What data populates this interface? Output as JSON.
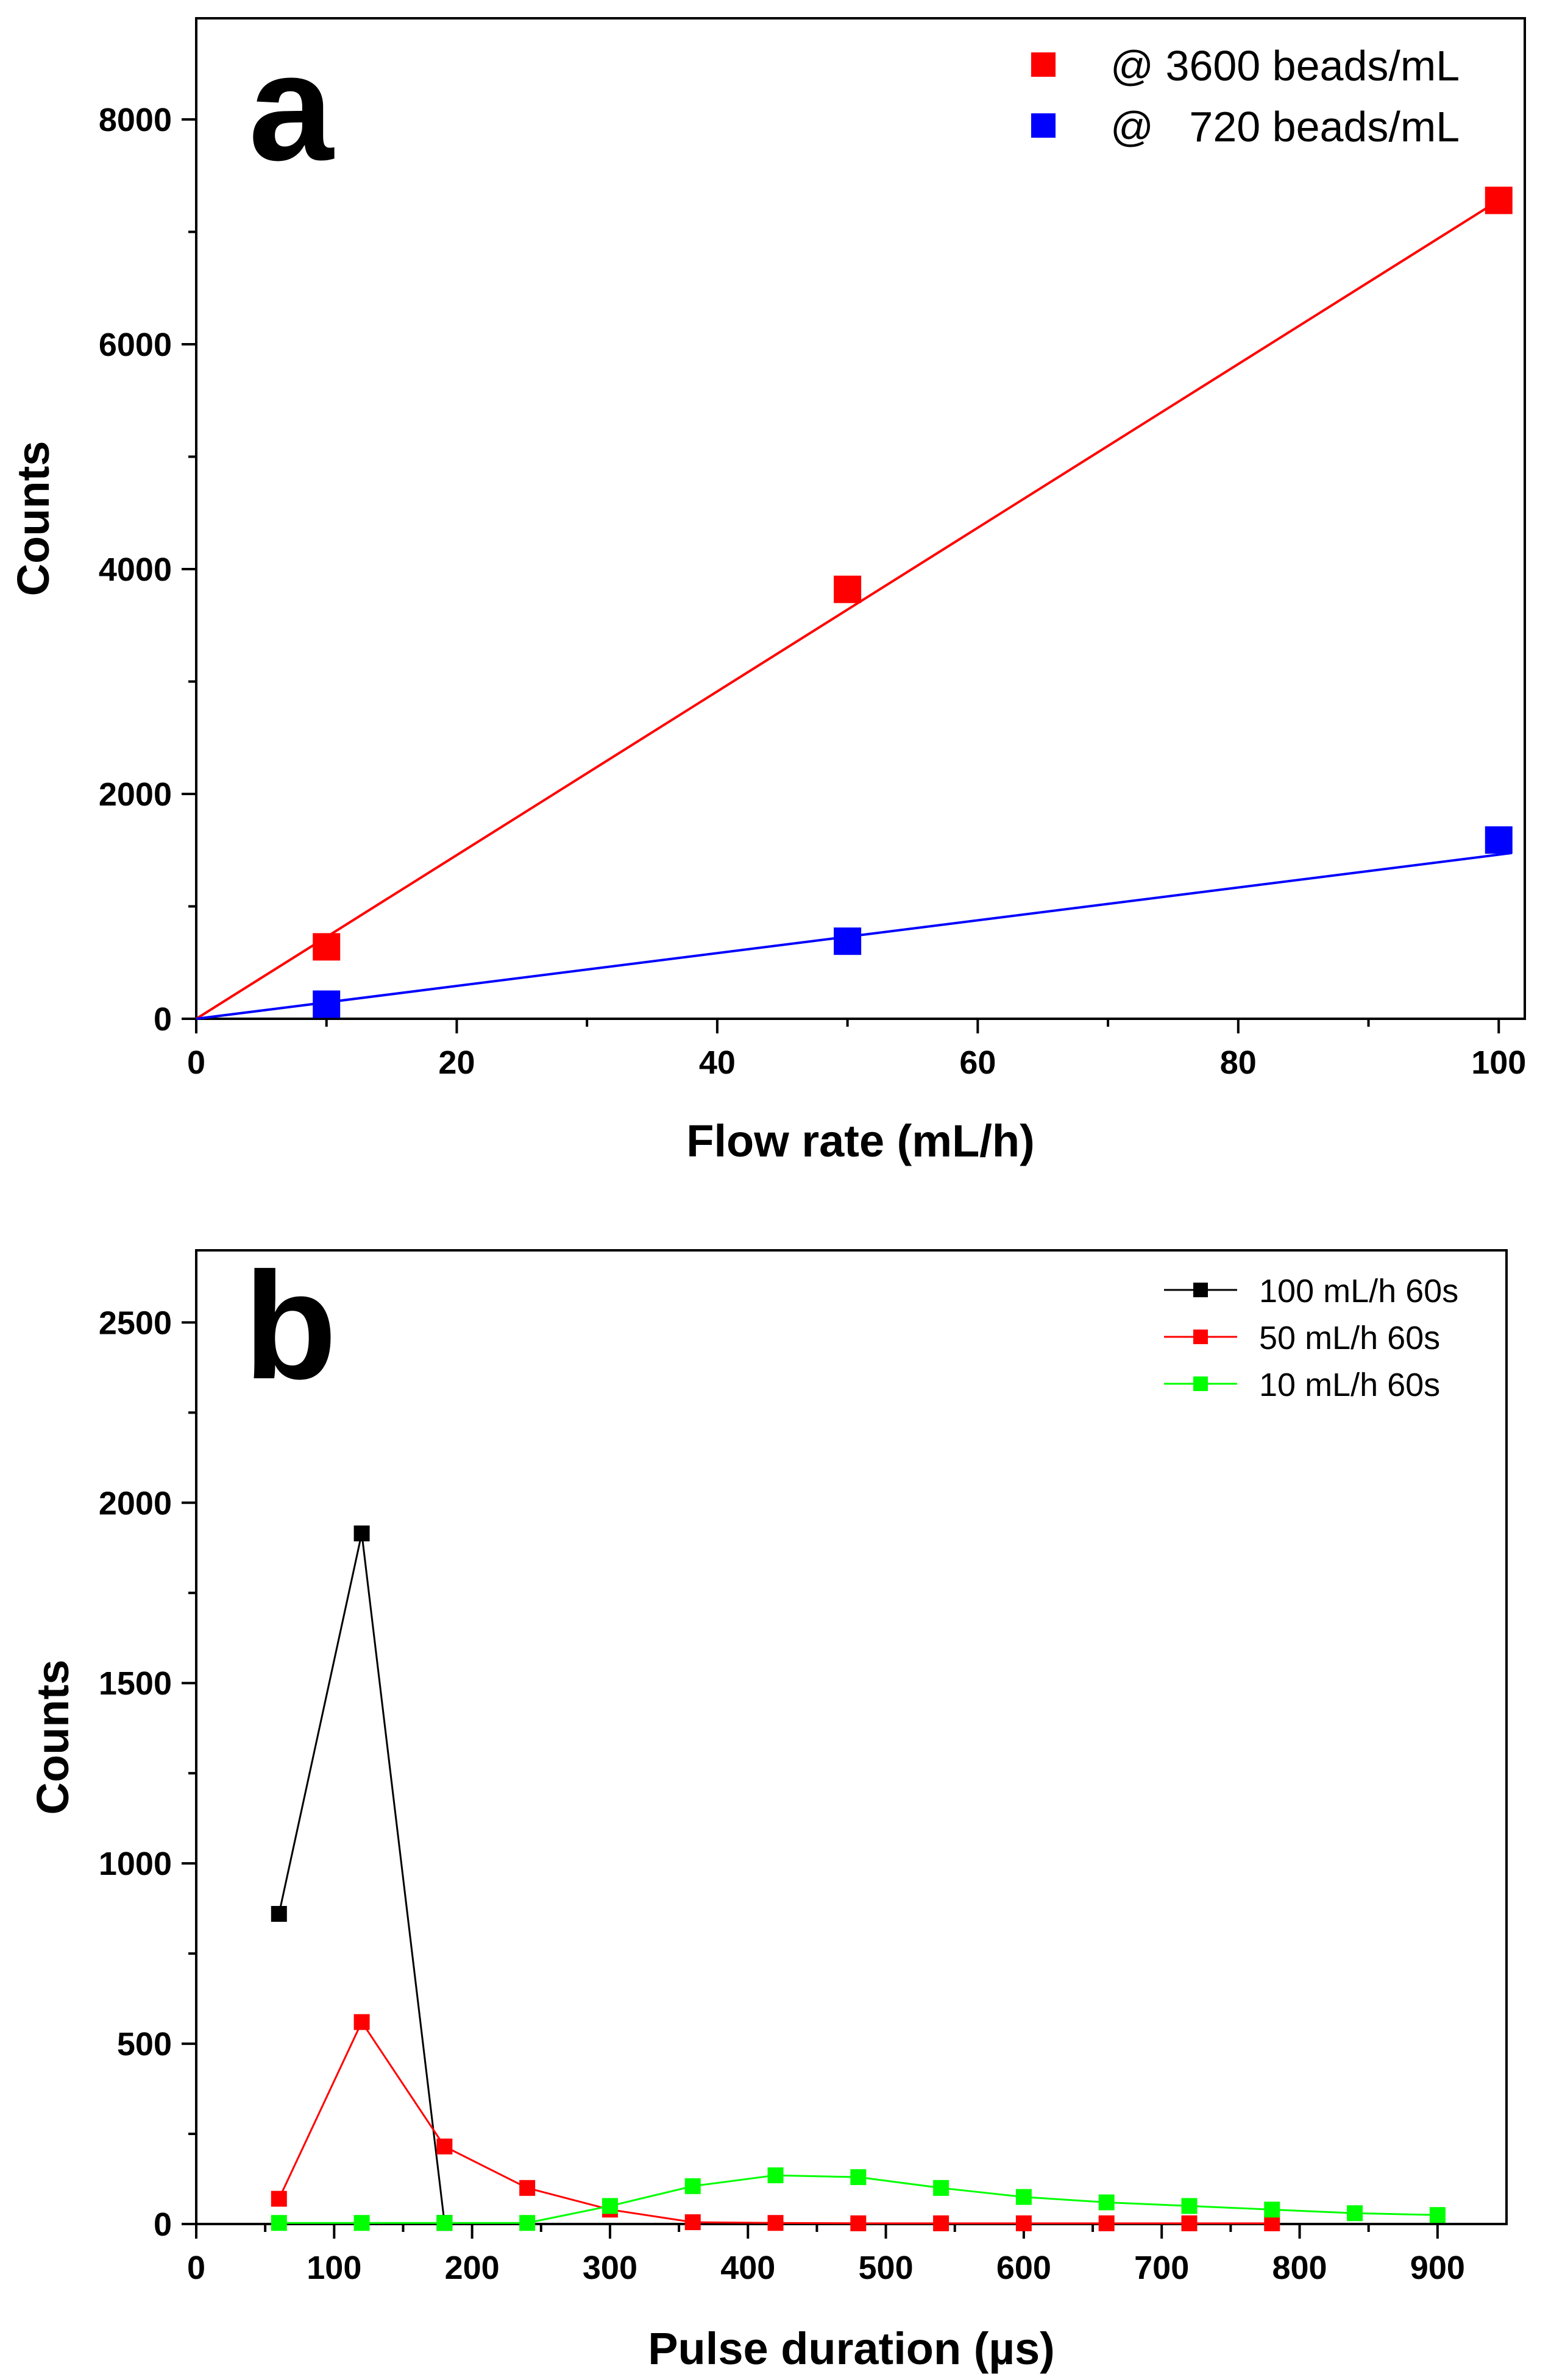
{
  "chart_data": [
    {
      "type": "scatter",
      "panel_label": "a",
      "xlabel": "Flow rate (mL/h)",
      "ylabel": "Counts",
      "xlim": [
        0,
        102
      ],
      "ylim": [
        0,
        8900
      ],
      "x_ticks": [
        0,
        20,
        40,
        60,
        80,
        100
      ],
      "y_ticks": [
        0,
        2000,
        4000,
        6000,
        8000
      ],
      "legend_position": "top-right",
      "series": [
        {
          "name": "@ 3600 beads/mL",
          "color": "#ff0000",
          "x": [
            10,
            50,
            100
          ],
          "y": [
            640,
            3820,
            7280
          ],
          "fit": {
            "slope": 72.8,
            "intercept": 0,
            "x_range": [
              0,
              100
            ]
          }
        },
        {
          "name": "@   720 beads/mL",
          "color": "#0000ff",
          "x": [
            10,
            50,
            100
          ],
          "y": [
            130,
            690,
            1590
          ],
          "fit": {
            "slope": 14.6,
            "intercept": 0,
            "x_range": [
              0,
              101
            ]
          }
        }
      ]
    },
    {
      "type": "line",
      "panel_label": "b",
      "xlabel": "Pulse duration (µs)",
      "ylabel": "Counts",
      "xlim": [
        0,
        950
      ],
      "ylim": [
        0,
        2700
      ],
      "x_ticks": [
        0,
        100,
        200,
        300,
        400,
        500,
        600,
        700,
        800,
        900
      ],
      "y_ticks": [
        0,
        500,
        1000,
        1500,
        2000,
        2500
      ],
      "legend_position": "top-right",
      "series": [
        {
          "name": "100 mL/h 60s",
          "color": "#000000",
          "x": [
            60,
            120,
            180
          ],
          "y": [
            860,
            1915,
            3
          ]
        },
        {
          "name": "50 mL/h 60s",
          "color": "#ff0000",
          "x": [
            60,
            120,
            180,
            240,
            300,
            360,
            420,
            480,
            540,
            600,
            660,
            720,
            780
          ],
          "y": [
            70,
            560,
            215,
            100,
            40,
            5,
            3,
            2,
            2,
            2,
            2,
            2,
            2
          ]
        },
        {
          "name": "10 mL/h 60s",
          "color": "#00ff00",
          "x": [
            60,
            120,
            180,
            240,
            300,
            360,
            420,
            480,
            540,
            600,
            660,
            720,
            780,
            840,
            900
          ],
          "y": [
            3,
            3,
            3,
            3,
            50,
            105,
            135,
            130,
            100,
            75,
            60,
            50,
            40,
            30,
            25
          ]
        }
      ]
    }
  ]
}
